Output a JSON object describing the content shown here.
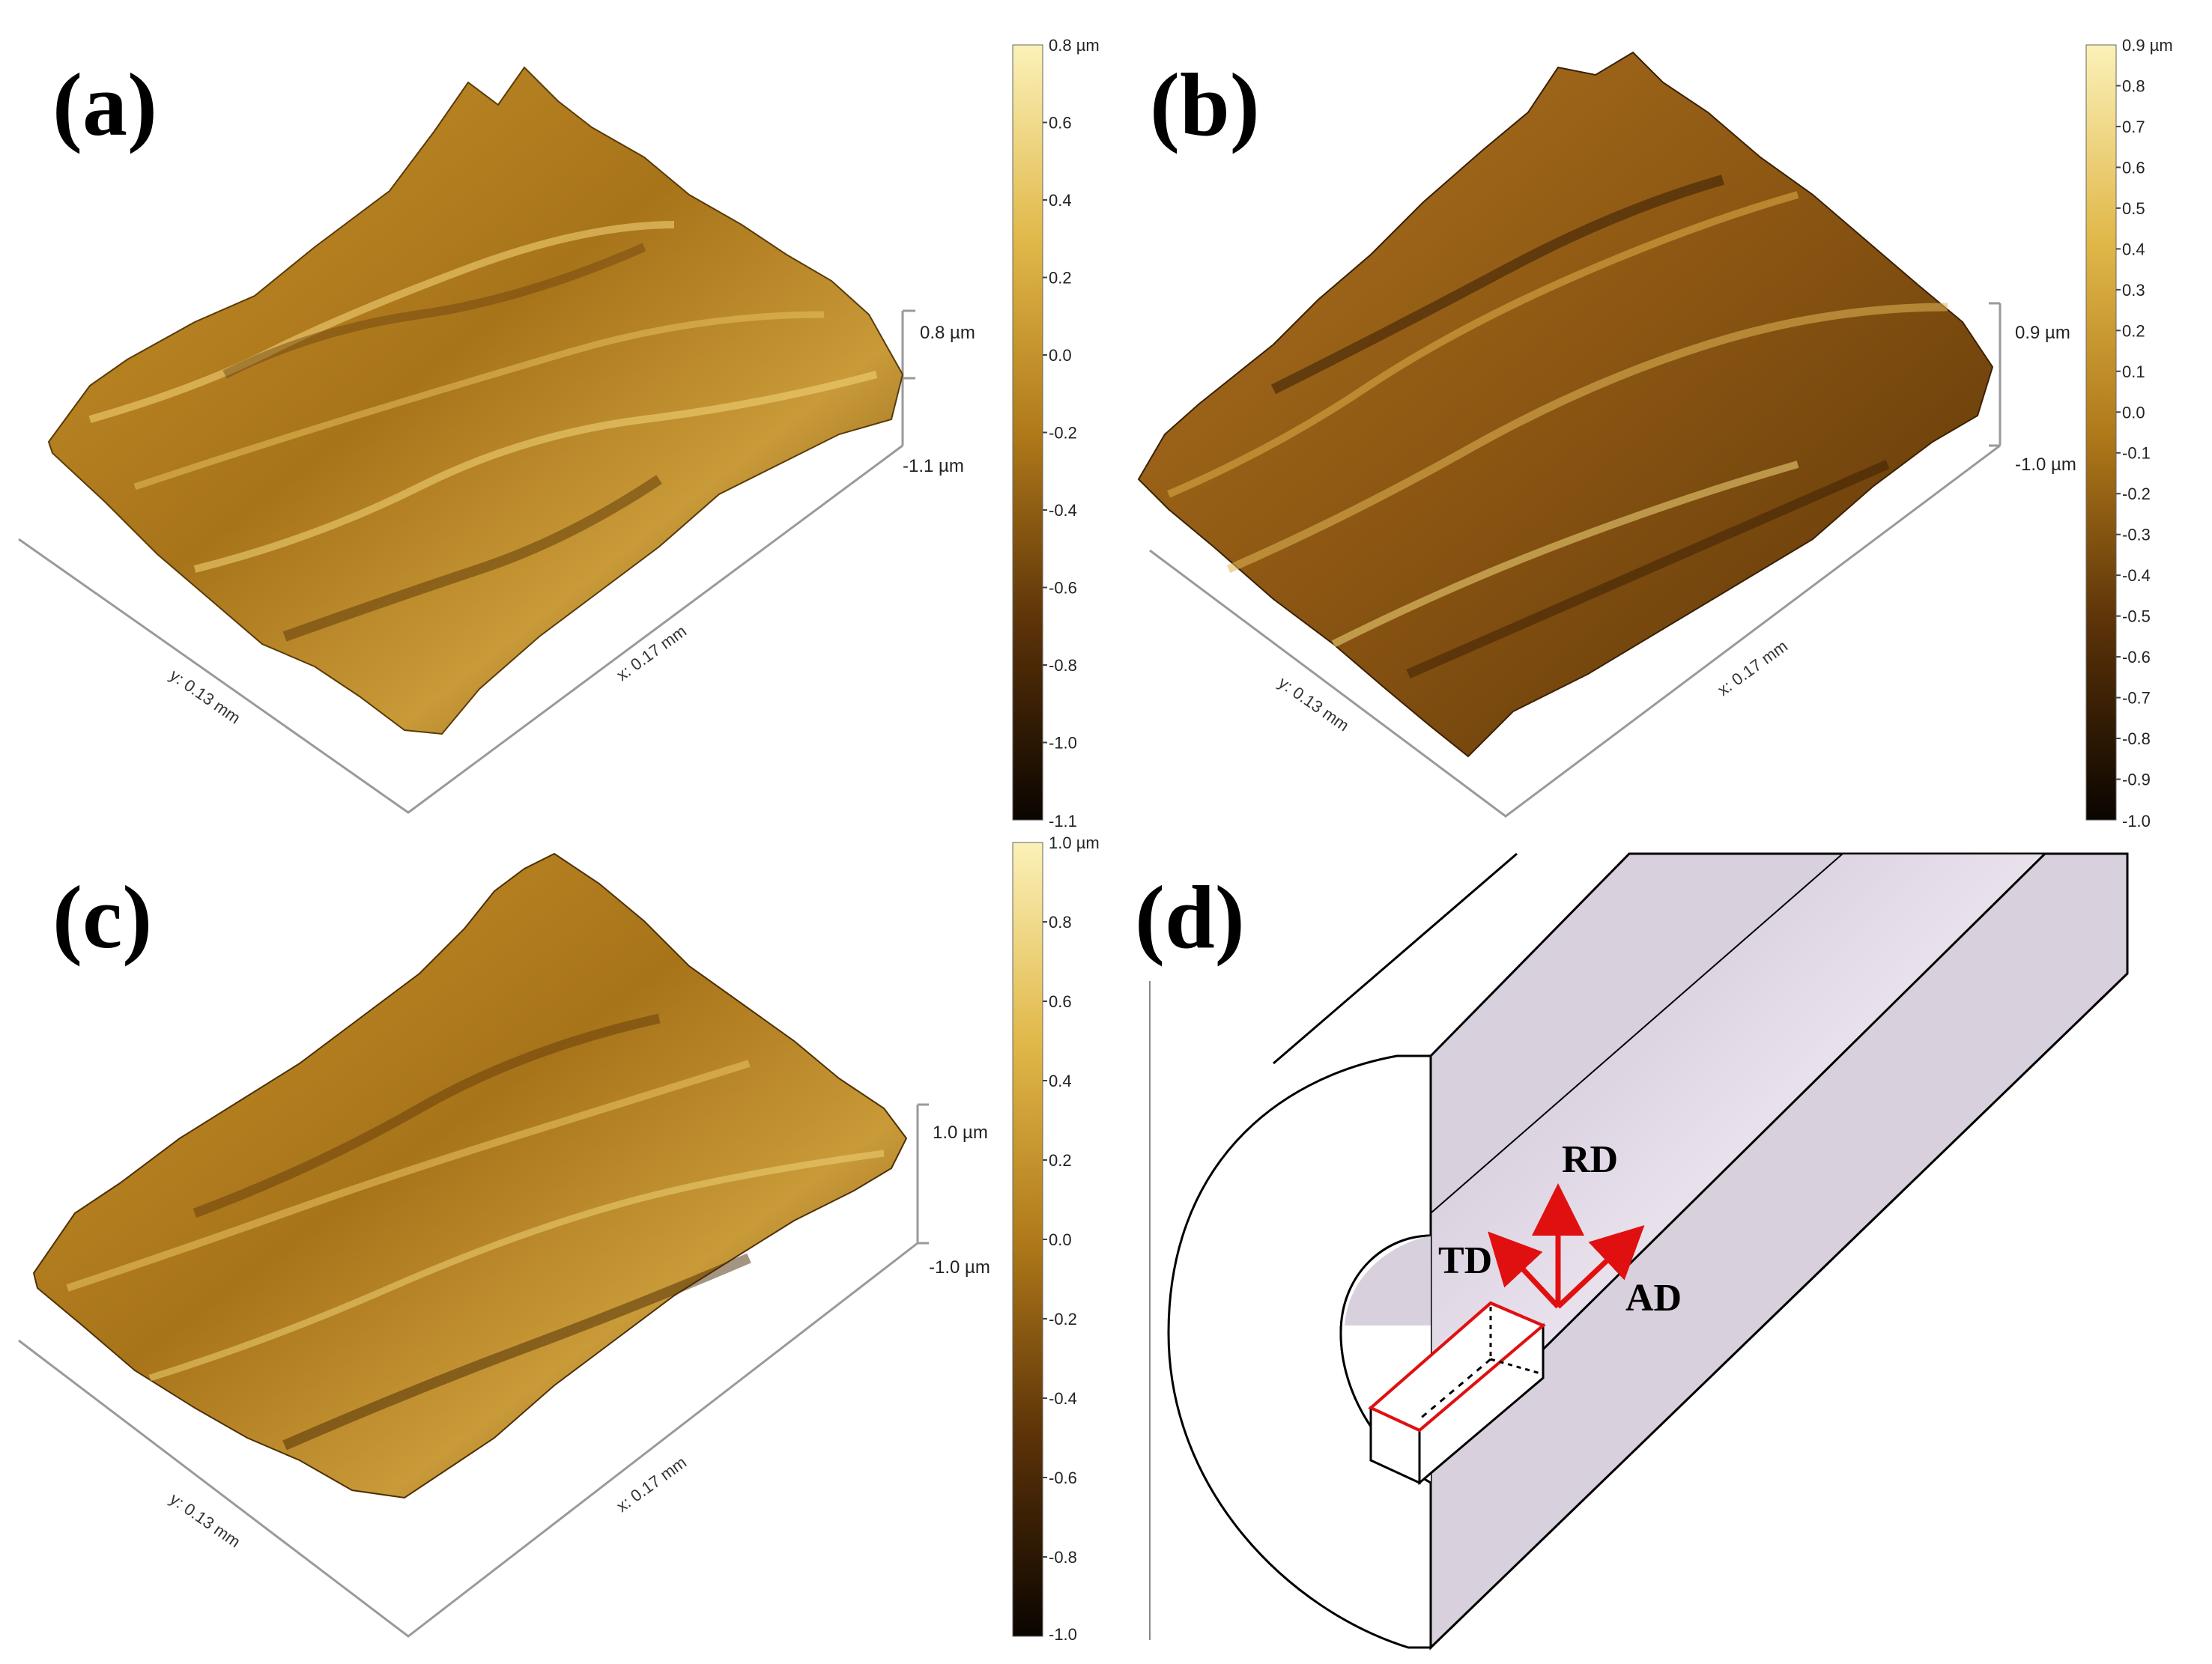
{
  "panels": {
    "a": {
      "label": "(a)",
      "x_axis": "x: 0.17 mm",
      "y_axis": "y: 0.13 mm",
      "z_top": "0.8 µm",
      "z_bottom": "-1.1 µm",
      "colorbar": {
        "top": "0.8 µm",
        "ticks": [
          "0.6",
          "0.4",
          "0.2",
          "0.0",
          "-0.2",
          "-0.4",
          "-0.6",
          "-0.8",
          "-1.0"
        ],
        "bottom": "-1.1"
      }
    },
    "b": {
      "label": "(b)",
      "x_axis": "x: 0.17 mm",
      "y_axis": "y: 0.13 mm",
      "z_top": "0.9 µm",
      "z_bottom": "-1.0 µm",
      "colorbar": {
        "top": "0.9 µm",
        "ticks": [
          "0.8",
          "0.7",
          "0.6",
          "0.5",
          "0.4",
          "0.3",
          "0.2",
          "0.1",
          "0.0",
          "-0.1",
          "-0.2",
          "-0.3",
          "-0.4",
          "-0.5",
          "-0.6",
          "-0.7",
          "-0.8",
          "-0.9"
        ],
        "bottom": "-1.0"
      }
    },
    "c": {
      "label": "(c)",
      "x_axis": "x: 0.17 mm",
      "y_axis": "y: 0.13 mm",
      "z_top": "1.0 µm",
      "z_bottom": "-1.0 µm",
      "colorbar": {
        "top": "1.0 µm",
        "ticks": [
          "0.8",
          "0.6",
          "0.4",
          "0.2",
          "0.0",
          "-0.2",
          "-0.4",
          "-0.6",
          "-0.8"
        ],
        "bottom": "-1.0"
      }
    },
    "d": {
      "label": "(d)",
      "rd": "RD",
      "td": "TD",
      "ad": "AD"
    }
  },
  "colors": {
    "surface_light": "#f2d77a",
    "surface_mid": "#b5801c",
    "surface_dark": "#4a2a05",
    "tube_face": "#d9d0dd",
    "arrow": "#e01010",
    "sample_outline": "#e01010"
  }
}
